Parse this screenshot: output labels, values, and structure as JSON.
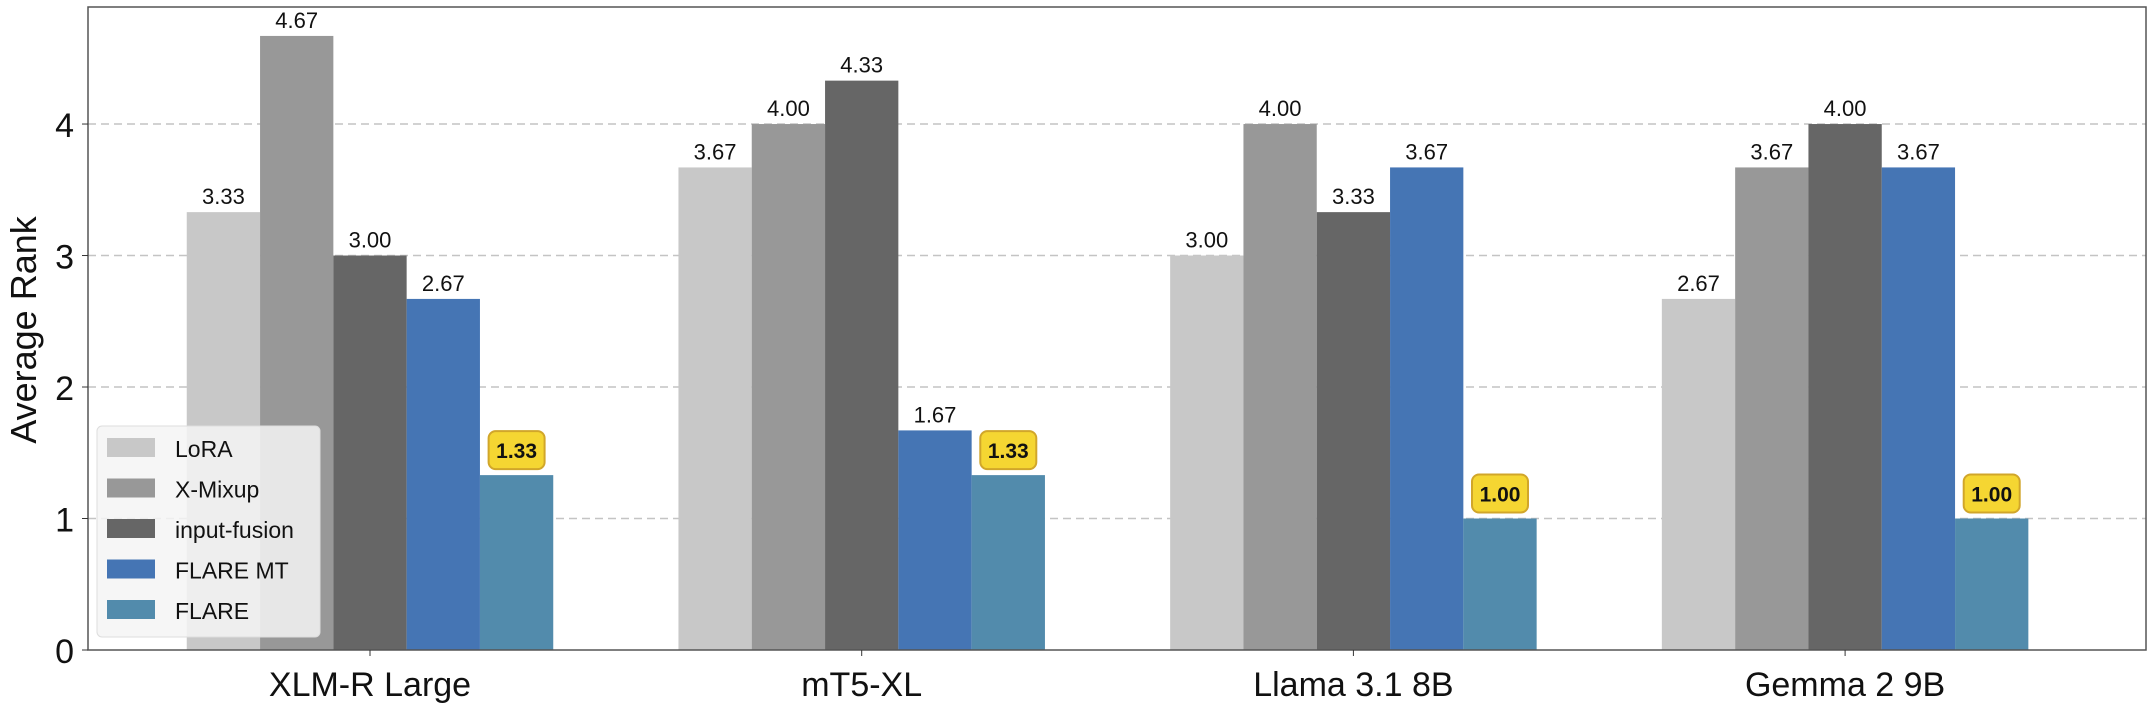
{
  "chart_data": {
    "type": "bar",
    "title": "",
    "xlabel": "",
    "ylabel": "Average Rank",
    "ylim": [
      0,
      4.89
    ],
    "yticks": [
      "0",
      "1",
      "2",
      "3",
      "4"
    ],
    "grid": "y-dashed",
    "legend_position": "lower-left",
    "categories": [
      "XLM-R Large",
      "mT5-XL",
      "Llama 3.1 8B",
      "Gemma 2 9B"
    ],
    "series": [
      {
        "name": "LoRA",
        "color": "#c8c8c8",
        "values": [
          3.33,
          3.67,
          3.0,
          2.67
        ],
        "labels": [
          "3.33",
          "3.67",
          "3.00",
          "2.67"
        ]
      },
      {
        "name": "X-Mixup",
        "color": "#989898",
        "values": [
          4.67,
          4.0,
          4.0,
          3.67
        ],
        "labels": [
          "4.67",
          "4.00",
          "4.00",
          "3.67"
        ]
      },
      {
        "name": "input-fusion",
        "color": "#666666",
        "values": [
          3.0,
          4.33,
          3.33,
          4.0
        ],
        "labels": [
          "3.00",
          "4.33",
          "3.33",
          "4.00"
        ]
      },
      {
        "name": "FLARE MT",
        "color": "#4575b4",
        "values": [
          2.67,
          1.67,
          3.67,
          3.67
        ],
        "labels": [
          "2.67",
          "1.67",
          "3.67",
          "3.67"
        ]
      },
      {
        "name": "FLARE",
        "color": "#528bac",
        "values": [
          1.33,
          1.33,
          1.0,
          1.0
        ],
        "labels": [
          "1.33",
          "1.33",
          "1.00",
          "1.00"
        ],
        "highlight": true
      }
    ],
    "highlight_color": "#f5d632"
  }
}
